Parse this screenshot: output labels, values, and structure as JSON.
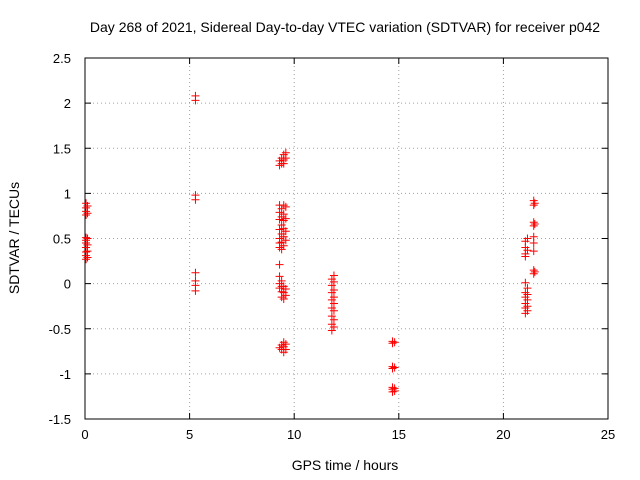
{
  "chart_data": {
    "type": "scatter",
    "title": "Day 268 of 2021, Sidereal Day-to-day VTEC variation (SDTVAR) for receiver p042",
    "xlabel": "GPS time / hours",
    "ylabel": "SDTVAR / TECUs",
    "xlim": [
      0,
      25
    ],
    "ylim": [
      -1.5,
      2.5
    ],
    "x_ticks": [
      "0",
      "5",
      "10",
      "15",
      "20",
      "25"
    ],
    "y_ticks": [
      "-1.5",
      "-1",
      "-0.5",
      "0",
      "0.5",
      "1",
      "1.5",
      "2",
      "2.5"
    ],
    "grid": true,
    "marker": "+",
    "color": "#ff0000",
    "series": [
      {
        "name": "SDTVAR",
        "points": [
          [
            0.05,
            0.89
          ],
          [
            0.05,
            0.84
          ],
          [
            0.05,
            0.8
          ],
          [
            0.05,
            0.76
          ],
          [
            0.05,
            0.51
          ],
          [
            0.05,
            0.48
          ],
          [
            0.05,
            0.45
          ],
          [
            0.05,
            0.4
          ],
          [
            0.05,
            0.35
          ],
          [
            0.05,
            0.31
          ],
          [
            0.05,
            0.27
          ],
          [
            0.12,
            0.86
          ],
          [
            0.12,
            0.78
          ],
          [
            0.12,
            0.5
          ],
          [
            0.12,
            0.43
          ],
          [
            0.12,
            0.36
          ],
          [
            0.12,
            0.29
          ],
          [
            5.28,
            2.08
          ],
          [
            5.28,
            2.03
          ],
          [
            5.28,
            0.98
          ],
          [
            5.28,
            0.93
          ],
          [
            5.28,
            0.12
          ],
          [
            5.28,
            0.03
          ],
          [
            5.28,
            -0.02
          ],
          [
            5.28,
            -0.08
          ],
          [
            9.3,
            1.36
          ],
          [
            9.3,
            1.31
          ],
          [
            9.3,
            0.87
          ],
          [
            9.3,
            0.79
          ],
          [
            9.3,
            0.71
          ],
          [
            9.3,
            0.6
          ],
          [
            9.3,
            0.5
          ],
          [
            9.3,
            0.45
          ],
          [
            9.3,
            0.4
          ],
          [
            9.3,
            0.21
          ],
          [
            9.3,
            0.08
          ],
          [
            9.3,
            0.0
          ],
          [
            9.3,
            -0.05
          ],
          [
            9.3,
            -0.71
          ],
          [
            9.4,
            1.39
          ],
          [
            9.4,
            1.33
          ],
          [
            9.4,
            0.83
          ],
          [
            9.4,
            0.74
          ],
          [
            9.4,
            0.65
          ],
          [
            9.4,
            0.55
          ],
          [
            9.4,
            0.46
          ],
          [
            9.4,
            0.38
          ],
          [
            9.4,
            0.03
          ],
          [
            9.4,
            -0.03
          ],
          [
            9.4,
            -0.09
          ],
          [
            9.4,
            -0.15
          ],
          [
            9.4,
            -0.68
          ],
          [
            9.4,
            -0.73
          ],
          [
            9.5,
            1.43
          ],
          [
            9.5,
            1.37
          ],
          [
            9.5,
            1.33
          ],
          [
            9.5,
            0.87
          ],
          [
            9.5,
            0.77
          ],
          [
            9.5,
            0.7
          ],
          [
            9.5,
            0.61
          ],
          [
            9.5,
            0.52
          ],
          [
            9.5,
            0.42
          ],
          [
            9.5,
            -0.03
          ],
          [
            9.5,
            -0.1
          ],
          [
            9.5,
            -0.17
          ],
          [
            9.5,
            -0.65
          ],
          [
            9.5,
            -0.7
          ],
          [
            9.5,
            -0.76
          ],
          [
            9.6,
            1.45
          ],
          [
            9.6,
            1.39
          ],
          [
            9.6,
            0.85
          ],
          [
            9.6,
            0.72
          ],
          [
            9.6,
            0.58
          ],
          [
            9.6,
            0.48
          ],
          [
            9.6,
            -0.06
          ],
          [
            9.6,
            -0.13
          ],
          [
            9.6,
            -0.67
          ],
          [
            9.6,
            -0.73
          ],
          [
            11.8,
            0.05
          ],
          [
            11.8,
            -0.02
          ],
          [
            11.8,
            -0.1
          ],
          [
            11.8,
            -0.18
          ],
          [
            11.8,
            -0.27
          ],
          [
            11.8,
            -0.36
          ],
          [
            11.8,
            -0.45
          ],
          [
            11.8,
            -0.52
          ],
          [
            11.9,
            0.09
          ],
          [
            11.9,
            0.02
          ],
          [
            11.9,
            -0.07
          ],
          [
            11.9,
            -0.15
          ],
          [
            11.9,
            -0.22
          ],
          [
            11.9,
            -0.3
          ],
          [
            11.9,
            -0.4
          ],
          [
            11.9,
            -0.48
          ],
          [
            14.7,
            -0.64
          ],
          [
            14.7,
            -0.66
          ],
          [
            14.7,
            -0.92
          ],
          [
            14.7,
            -0.94
          ],
          [
            14.7,
            -1.15
          ],
          [
            14.7,
            -1.17
          ],
          [
            14.7,
            -1.2
          ],
          [
            14.8,
            -0.65
          ],
          [
            14.8,
            -0.93
          ],
          [
            14.8,
            -1.16
          ],
          [
            14.8,
            -1.19
          ],
          [
            21.05,
            0.47
          ],
          [
            21.05,
            0.4
          ],
          [
            21.05,
            0.33
          ],
          [
            21.05,
            0.3
          ],
          [
            21.05,
            0.01
          ],
          [
            21.05,
            -0.1
          ],
          [
            21.05,
            -0.15
          ],
          [
            21.05,
            -0.22
          ],
          [
            21.05,
            -0.27
          ],
          [
            21.05,
            -0.33
          ],
          [
            21.15,
            0.5
          ],
          [
            21.15,
            0.37
          ],
          [
            21.15,
            -0.05
          ],
          [
            21.15,
            -0.12
          ],
          [
            21.15,
            -0.18
          ],
          [
            21.15,
            -0.25
          ],
          [
            21.15,
            -0.3
          ],
          [
            21.45,
            0.92
          ],
          [
            21.45,
            0.87
          ],
          [
            21.45,
            0.68
          ],
          [
            21.45,
            0.64
          ],
          [
            21.45,
            0.52
          ],
          [
            21.45,
            0.45
          ],
          [
            21.45,
            0.36
          ],
          [
            21.45,
            0.15
          ],
          [
            21.45,
            0.11
          ],
          [
            21.5,
            0.89
          ],
          [
            21.5,
            0.66
          ],
          [
            21.5,
            0.13
          ]
        ]
      }
    ]
  }
}
